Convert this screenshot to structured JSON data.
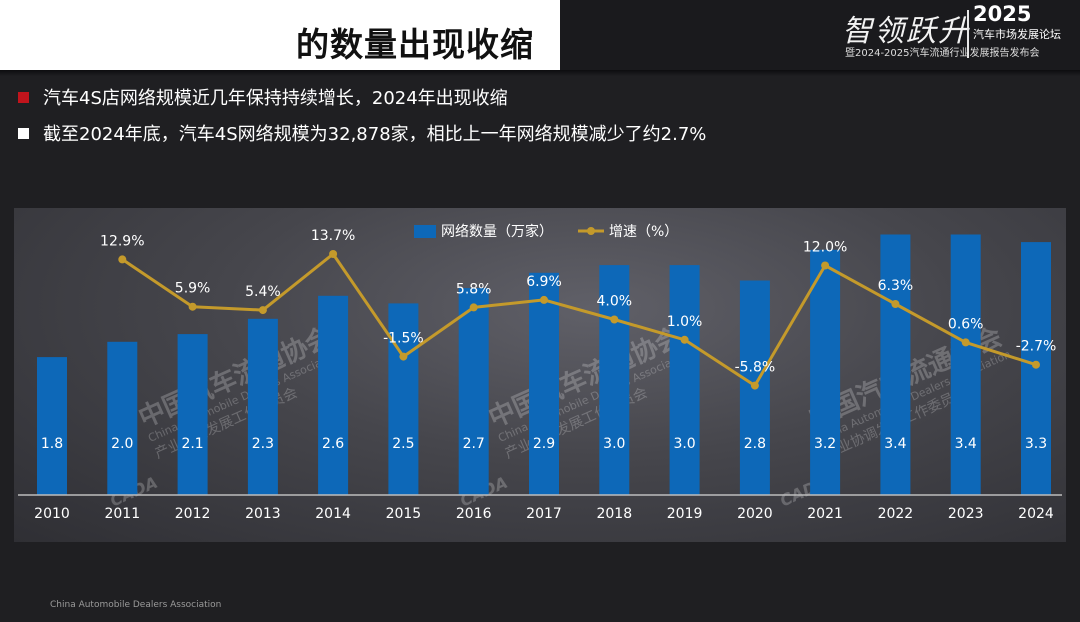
{
  "header": {
    "title": "的数量出现收缩",
    "logo": {
      "script_text": "智领跃升",
      "year": "2025",
      "forum": "汽车市场发展论坛",
      "release": "暨2024-2025汽车流通行业发展报告发布会"
    }
  },
  "bullets": [
    {
      "text": "汽车4S店网络规模近几年保持持续增长，2024年出现收缩",
      "marker_color": "#c0141c"
    },
    {
      "text": "截至2024年底，汽车4S网络规模为32,878家，相比上一年网络规模减少了约2.7%",
      "marker_color": "#ffffff"
    }
  ],
  "watermark": {
    "org_cn": "中国汽车流通协会",
    "org_en": "China Automobile Dealers Association",
    "committee": "产业协调发展工作委员会",
    "logo_text": "CADA"
  },
  "footer": {
    "note": "China Automobile Dealers Association"
  },
  "colors": {
    "bar": "#0d68b8",
    "line": "#c49a2b",
    "panel_bg": "#4a4a50",
    "page_bg": "#1f1f22"
  },
  "chart_data": {
    "type": "bar",
    "title": "",
    "xlabel": "",
    "ylabel": "",
    "legend_position": "top-center",
    "grid": false,
    "categories": [
      "2010",
      "2011",
      "2012",
      "2013",
      "2014",
      "2015",
      "2016",
      "2017",
      "2018",
      "2019",
      "2020",
      "2021",
      "2022",
      "2023",
      "2024"
    ],
    "series": [
      {
        "name": "网络数量（万家）",
        "type": "bar",
        "axis": "left",
        "values": [
          1.8,
          2.0,
          2.1,
          2.3,
          2.6,
          2.5,
          2.7,
          2.9,
          3.0,
          3.0,
          2.8,
          3.2,
          3.4,
          3.4,
          3.3
        ],
        "labels": [
          "1.8",
          "2.0",
          "2.1",
          "2.3",
          "2.6",
          "2.5",
          "2.7",
          "2.9",
          "3.0",
          "3.0",
          "2.8",
          "3.2",
          "3.4",
          "3.4",
          "3.3"
        ]
      },
      {
        "name": "增速（%）",
        "type": "line",
        "axis": "right",
        "values": [
          null,
          12.9,
          5.9,
          5.4,
          13.7,
          -1.5,
          5.8,
          6.9,
          4.0,
          1.0,
          -5.8,
          12.0,
          6.3,
          0.6,
          -2.7
        ],
        "labels": [
          "",
          "12.9%",
          "5.9%",
          "5.4%",
          "13.7%",
          "-1.5%",
          "5.8%",
          "6.9%",
          "4.0%",
          "1.0%",
          "-5.8%",
          "12.0%",
          "6.3%",
          "0.6%",
          "-2.7%"
        ]
      }
    ],
    "ylim_left": [
      0,
      3.85
    ],
    "ylim_right": [
      -22,
      18
    ]
  }
}
